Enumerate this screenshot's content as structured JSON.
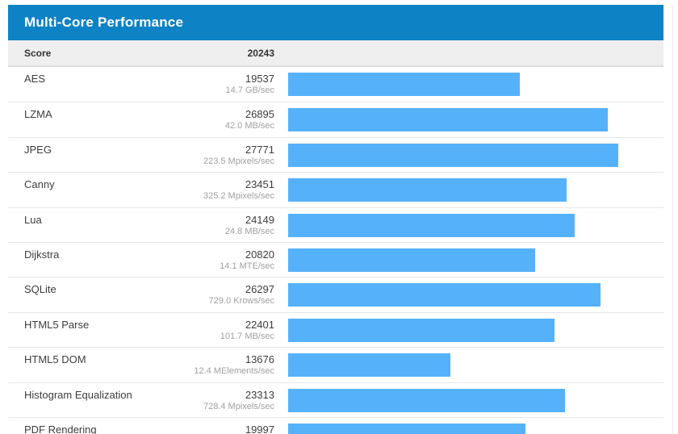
{
  "panel": {
    "title": "Multi-Core Performance",
    "header": {
      "score_label": "Score",
      "overall_score": "20243"
    },
    "rows": [
      {
        "name": "AES",
        "score": "19537",
        "unit": "14.7 GB/sec"
      },
      {
        "name": "LZMA",
        "score": "26895",
        "unit": "42.0 MB/sec"
      },
      {
        "name": "JPEG",
        "score": "27771",
        "unit": "223.5 Mpixels/sec"
      },
      {
        "name": "Canny",
        "score": "23451",
        "unit": "325.2 Mpixels/sec"
      },
      {
        "name": "Lua",
        "score": "24149",
        "unit": "24.8 MB/sec"
      },
      {
        "name": "Dijkstra",
        "score": "20820",
        "unit": "14.1 MTE/sec"
      },
      {
        "name": "SQLite",
        "score": "26297",
        "unit": "729.0 Krows/sec"
      },
      {
        "name": "HTML5 Parse",
        "score": "22401",
        "unit": "101.7 MB/sec"
      },
      {
        "name": "HTML5 DOM",
        "score": "13676",
        "unit": "12.4 MElements/sec"
      },
      {
        "name": "Histogram Equalization",
        "score": "23313",
        "unit": "728.4 Mpixels/sec"
      },
      {
        "name": "PDF Rendering",
        "score": "19997",
        "unit": ""
      }
    ]
  },
  "chart_data": {
    "type": "bar",
    "orientation": "horizontal",
    "title": "Multi-Core Performance",
    "overall_score": 20243,
    "categories": [
      "AES",
      "LZMA",
      "JPEG",
      "Canny",
      "Lua",
      "Dijkstra",
      "SQLite",
      "HTML5 Parse",
      "HTML5 DOM",
      "Histogram Equalization",
      "PDF Rendering"
    ],
    "values": [
      19537,
      26895,
      27771,
      23451,
      24149,
      20820,
      26297,
      22401,
      13676,
      23313,
      19997
    ],
    "units": [
      "14.7 GB/sec",
      "42.0 MB/sec",
      "223.5 Mpixels/sec",
      "325.2 Mpixels/sec",
      "24.8 MB/sec",
      "14.1 MTE/sec",
      "729.0 Krows/sec",
      "101.7 MB/sec",
      "12.4 MElements/sec",
      "728.4 Mpixels/sec",
      ""
    ],
    "xlabel": "",
    "ylabel": "",
    "xlim": [
      0,
      31600
    ],
    "grid": false,
    "legend": false,
    "bar_color": "#55b2fa",
    "header_color": "#0d82c4"
  }
}
